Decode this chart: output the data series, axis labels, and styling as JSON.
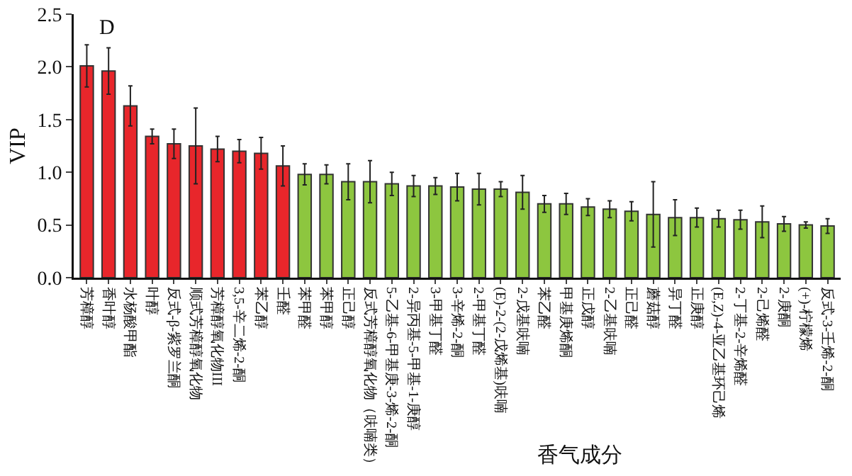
{
  "chart_data": {
    "type": "bar",
    "xlabel": "香气成分",
    "ylabel": "VIP",
    "annotations": [
      "D"
    ],
    "categories": [
      "芳樟醇",
      "香叶醇",
      "水杨酸甲酯",
      "叶醇",
      "反式-β-紫罗兰酮",
      "顺式芳樟醇氧化物",
      "芳樟醇氧化物III",
      "3,5-辛二烯-2-酮",
      "苯乙醇",
      "壬醛",
      "苯甲醛",
      "苯甲醇",
      "正己醇",
      "反式芳樟醇氧化物（呋喃类）",
      "5-乙基-6-甲基庚-3-烯-2-酮",
      "2-异丙基-5-甲基-1-庚醇",
      "3-甲基丁醛",
      "3-辛烯-2-酮",
      "2-甲基丁醛",
      "(E)-2-(2-戊烯基)呋喃",
      "2-戊基呋喃",
      "苯乙醛",
      "甲基庚烯酮",
      "正戊醇",
      "2-乙基呋喃",
      "正己醛",
      "蘑菇醇",
      "异丁醛",
      "正庚醇",
      "(E,Z)-4-亚乙基环己烯",
      "2-丁基-2-辛烯醛",
      "2-己烯醛",
      "2-庚酮",
      "(+)-柠檬烯",
      "反式-3-壬烯-2-酮"
    ],
    "values": [
      2.01,
      1.96,
      1.63,
      1.34,
      1.27,
      1.25,
      1.22,
      1.2,
      1.18,
      1.06,
      0.98,
      0.98,
      0.91,
      0.91,
      0.89,
      0.87,
      0.87,
      0.86,
      0.84,
      0.84,
      0.81,
      0.7,
      0.7,
      0.67,
      0.65,
      0.63,
      0.6,
      0.57,
      0.57,
      0.56,
      0.55,
      0.53,
      0.51,
      0.5,
      0.49
    ],
    "errors": [
      0.2,
      0.22,
      0.19,
      0.07,
      0.14,
      0.36,
      0.12,
      0.11,
      0.15,
      0.19,
      0.1,
      0.09,
      0.17,
      0.2,
      0.11,
      0.1,
      0.08,
      0.13,
      0.15,
      0.07,
      0.16,
      0.08,
      0.1,
      0.08,
      0.08,
      0.09,
      0.31,
      0.17,
      0.09,
      0.08,
      0.09,
      0.15,
      0.07,
      0.03,
      0.07
    ],
    "colors": [
      "#e8262b",
      "#e8262b",
      "#e8262b",
      "#e8262b",
      "#e8262b",
      "#e8262b",
      "#e8262b",
      "#e8262b",
      "#e8262b",
      "#e8262b",
      "#8dc63f",
      "#8dc63f",
      "#8dc63f",
      "#8dc63f",
      "#8dc63f",
      "#8dc63f",
      "#8dc63f",
      "#8dc63f",
      "#8dc63f",
      "#8dc63f",
      "#8dc63f",
      "#8dc63f",
      "#8dc63f",
      "#8dc63f",
      "#8dc63f",
      "#8dc63f",
      "#8dc63f",
      "#8dc63f",
      "#8dc63f",
      "#8dc63f",
      "#8dc63f",
      "#8dc63f",
      "#8dc63f",
      "#8dc63f",
      "#8dc63f"
    ],
    "ylim": [
      0,
      2.5
    ],
    "yticks": [
      {
        "value": 0,
        "label": "0.0"
      },
      {
        "value": 0.5,
        "label": "0.5"
      },
      {
        "value": 1,
        "label": "1.0"
      },
      {
        "value": 1.5,
        "label": "1.5"
      },
      {
        "value": 2,
        "label": "2.0"
      },
      {
        "value": 2.5,
        "label": "2.5"
      }
    ],
    "grid": false
  }
}
